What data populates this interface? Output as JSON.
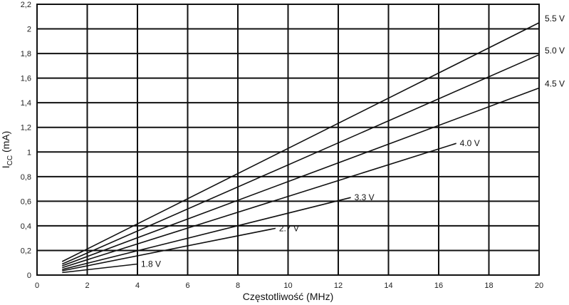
{
  "chart_data": {
    "type": "line",
    "title": "",
    "xlabel": "Częstotliwość (MHz)",
    "ylabel": {
      "main": "I",
      "sub": "CC",
      "rest": " (mA)"
    },
    "xlim": [
      0,
      20
    ],
    "ylim": [
      0,
      2.2
    ],
    "x_ticks": [
      "0",
      "2",
      "4",
      "6",
      "8",
      "10",
      "12",
      "14",
      "16",
      "18",
      "20"
    ],
    "y_ticks": [
      "0",
      "0,2",
      "0,4",
      "0,6",
      "0,8",
      "1",
      "1,2",
      "1,4",
      "1,6",
      "1,8",
      "2",
      "2,2"
    ],
    "grid": true,
    "legend": "inline-labels",
    "colors": {
      "line": "#111111",
      "grid": "#111111",
      "text": "#111111"
    },
    "series": [
      {
        "name": "5.5 V",
        "x": [
          1,
          20
        ],
        "y": [
          0.11,
          2.05
        ]
      },
      {
        "name": "5.0 V",
        "x": [
          1,
          20
        ],
        "y": [
          0.09,
          1.79
        ]
      },
      {
        "name": "4.5 V",
        "x": [
          1,
          20
        ],
        "y": [
          0.075,
          1.52
        ]
      },
      {
        "name": "4.0 V",
        "x": [
          1,
          16.7
        ],
        "y": [
          0.06,
          1.07
        ]
      },
      {
        "name": "3.3 V",
        "x": [
          1,
          12.5
        ],
        "y": [
          0.045,
          0.63
        ]
      },
      {
        "name": "2.7 V",
        "x": [
          1,
          9.5
        ],
        "y": [
          0.035,
          0.38
        ]
      },
      {
        "name": "1.8 V",
        "x": [
          1,
          4
        ],
        "y": [
          0.02,
          0.09
        ]
      }
    ]
  }
}
